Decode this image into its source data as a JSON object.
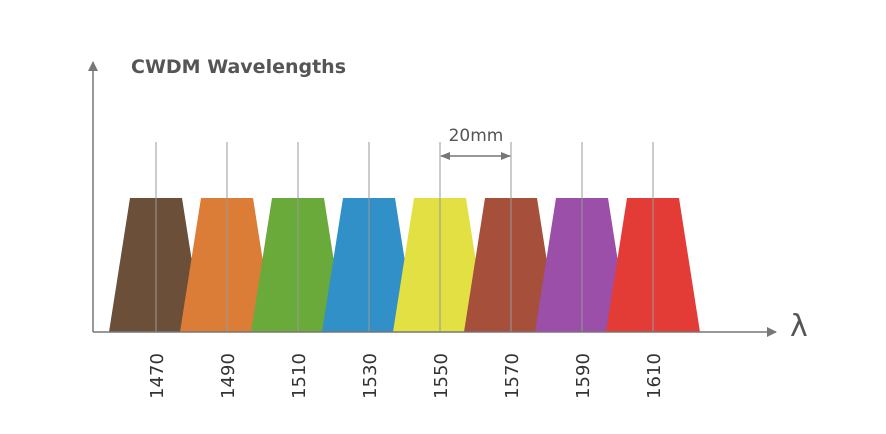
{
  "title": "CWDM Wavelengths",
  "axis_symbol": "λ",
  "spacing_label": "20mm",
  "chart_data": {
    "type": "diagram",
    "title": "CWDM Wavelengths",
    "x_axis_symbol": "λ",
    "channel_spacing_label": "20mm",
    "spacing_marker": {
      "from": 1550,
      "to": 1570
    },
    "channels": [
      {
        "wavelength": 1470,
        "label": "1470",
        "color": "#6b4f38"
      },
      {
        "wavelength": 1490,
        "label": "1490",
        "color": "#db7d37"
      },
      {
        "wavelength": 1510,
        "label": "1510",
        "color": "#6aaa3a"
      },
      {
        "wavelength": 1530,
        "label": "1530",
        "color": "#3190c8"
      },
      {
        "wavelength": 1550,
        "label": "1550",
        "color": "#e3e044"
      },
      {
        "wavelength": 1570,
        "label": "1570",
        "color": "#a64f3b"
      },
      {
        "wavelength": 1590,
        "label": "1590",
        "color": "#9c4fa8"
      },
      {
        "wavelength": 1610,
        "label": "1610",
        "color": "#e33b35"
      }
    ]
  }
}
